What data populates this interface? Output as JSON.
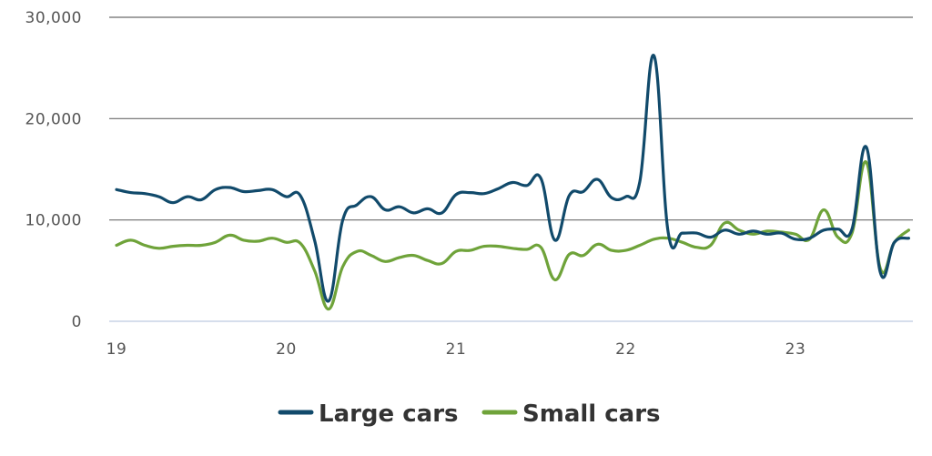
{
  "chart_data": {
    "type": "line",
    "title": "",
    "xlabel": "",
    "ylabel": "",
    "ylim": [
      0,
      30000
    ],
    "xlim": [
      19.0,
      23.7
    ],
    "y_ticks": [
      {
        "value": 0,
        "label": "0"
      },
      {
        "value": 10000,
        "label": "10,000"
      },
      {
        "value": 20000,
        "label": "20,000"
      },
      {
        "value": 30000,
        "label": "30,000"
      }
    ],
    "x_ticks": [
      {
        "value": 19,
        "label": "19"
      },
      {
        "value": 20,
        "label": "20"
      },
      {
        "value": 21,
        "label": "21"
      },
      {
        "value": 22,
        "label": "22"
      },
      {
        "value": 23,
        "label": "23"
      }
    ],
    "grid": true,
    "legend_position": "bottom-center",
    "series": [
      {
        "name": "Large cars",
        "color": "#114a6b",
        "x": [
          19.0,
          19.083,
          19.167,
          19.25,
          19.333,
          19.417,
          19.5,
          19.583,
          19.667,
          19.75,
          19.833,
          19.917,
          20.0,
          20.083,
          20.167,
          20.25,
          20.333,
          20.417,
          20.5,
          20.583,
          20.667,
          20.75,
          20.833,
          20.917,
          21.0,
          21.083,
          21.167,
          21.25,
          21.333,
          21.417,
          21.5,
          21.583,
          21.667,
          21.75,
          21.833,
          21.917,
          22.0,
          22.083,
          22.167,
          22.25,
          22.333,
          22.417,
          22.5,
          22.583,
          22.667,
          22.75,
          22.833,
          22.917,
          23.0,
          23.083,
          23.167,
          23.25,
          23.333,
          23.417,
          23.5,
          23.583,
          23.667
        ],
        "values": [
          13000,
          12700,
          12600,
          12300,
          11700,
          12300,
          12000,
          13000,
          13200,
          12800,
          12900,
          13000,
          12300,
          12400,
          8000,
          2000,
          10000,
          11500,
          12300,
          11000,
          11300,
          10700,
          11100,
          10700,
          12500,
          12700,
          12600,
          13100,
          13700,
          13400,
          14100,
          8000,
          12400,
          12800,
          14000,
          12200,
          12300,
          13800,
          26200,
          8800,
          8700,
          8700,
          8300,
          9000,
          8600,
          8900,
          8600,
          8700,
          8100,
          8200,
          9000,
          9100,
          9100,
          17200,
          4800,
          7800,
          8200
        ]
      },
      {
        "name": "Small cars",
        "color": "#6fa33a",
        "x": [
          19.0,
          19.083,
          19.167,
          19.25,
          19.333,
          19.417,
          19.5,
          19.583,
          19.667,
          19.75,
          19.833,
          19.917,
          20.0,
          20.083,
          20.167,
          20.25,
          20.333,
          20.417,
          20.5,
          20.583,
          20.667,
          20.75,
          20.833,
          20.917,
          21.0,
          21.083,
          21.167,
          21.25,
          21.333,
          21.417,
          21.5,
          21.583,
          21.667,
          21.75,
          21.833,
          21.917,
          22.0,
          22.083,
          22.167,
          22.25,
          22.333,
          22.417,
          22.5,
          22.583,
          22.667,
          22.75,
          22.833,
          22.917,
          23.0,
          23.083,
          23.167,
          23.25,
          23.333,
          23.417,
          23.5,
          23.583,
          23.667
        ],
        "values": [
          7500,
          8000,
          7500,
          7200,
          7400,
          7500,
          7500,
          7800,
          8500,
          8000,
          7900,
          8200,
          7800,
          7700,
          5000,
          1200,
          5400,
          6900,
          6500,
          5900,
          6300,
          6500,
          6000,
          5700,
          6900,
          7000,
          7400,
          7400,
          7200,
          7100,
          7300,
          4100,
          6600,
          6500,
          7600,
          7000,
          7000,
          7500,
          8100,
          8200,
          7800,
          7300,
          7500,
          9700,
          9000,
          8600,
          8900,
          8800,
          8600,
          8100,
          11000,
          8300,
          8700,
          15700,
          5200,
          7800,
          9000
        ]
      }
    ]
  }
}
